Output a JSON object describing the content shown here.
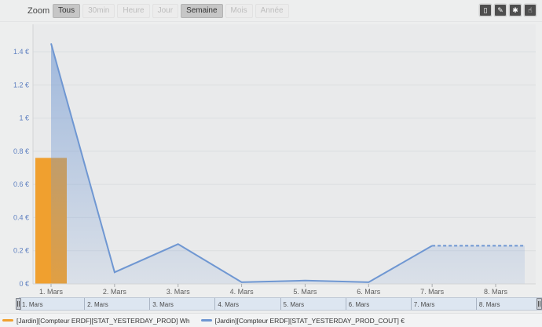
{
  "toolbar": {
    "zoom_label": "Zoom",
    "range_buttons": [
      {
        "label": "Tous",
        "state": "selected"
      },
      {
        "label": "30min",
        "state": "disabled"
      },
      {
        "label": "Heure",
        "state": "disabled"
      },
      {
        "label": "Jour",
        "state": "disabled"
      },
      {
        "label": "Semaine",
        "state": "selected"
      },
      {
        "label": "Mois",
        "state": "disabled"
      },
      {
        "label": "Année",
        "state": "disabled"
      }
    ],
    "action_buttons": [
      {
        "name": "panel-icon",
        "glyph": "▯"
      },
      {
        "name": "pencil-icon",
        "glyph": "✎"
      },
      {
        "name": "gear-icon",
        "glyph": "✱"
      },
      {
        "name": "hand-icon",
        "glyph": "☝"
      }
    ]
  },
  "chart_data": {
    "type": "mixed",
    "categories": [
      "1. Mars",
      "2. Mars",
      "3. Mars",
      "4. Mars",
      "5. Mars",
      "6. Mars",
      "7. Mars",
      "8. Mars"
    ],
    "series": [
      {
        "name": "[Jardin][Compteur ERDF][STAT_YESTERDAY_PROD] Wh",
        "type": "bar",
        "color": "#f0a02f",
        "values": [
          0.76,
          null,
          null,
          null,
          null,
          null,
          null,
          null
        ]
      },
      {
        "name": "[Jardin][Compteur ERDF][STAT_YESTERDAY_PROD_COUT] €",
        "type": "area",
        "color": "#6f97d2",
        "values": [
          1.45,
          0.07,
          0.24,
          0.01,
          0.02,
          0.01,
          0.23,
          0.23
        ],
        "dashed_from_index": 6,
        "extends_past_last_category": true
      }
    ],
    "yaxis": {
      "position": "left",
      "label_color": "#5d7fc0",
      "ylim": [
        0,
        1.57
      ],
      "ticks": [
        {
          "v": 1.4,
          "label": "1.4 €"
        },
        {
          "v": 1.2,
          "label": "1.2 €"
        },
        {
          "v": 1.0,
          "label": "1 €"
        },
        {
          "v": 0.8,
          "label": "0.8 €"
        },
        {
          "v": 0.6,
          "label": "0.6 €"
        },
        {
          "v": 0.4,
          "label": "0.4 €"
        },
        {
          "v": 0.2,
          "label": "0.2 €"
        },
        {
          "v": 0.0,
          "label": "0 €"
        }
      ],
      "grid": true
    },
    "legend_position": "bottom"
  },
  "navigator": {
    "labels": [
      "1. Mars",
      "2. Mars",
      "3. Mars",
      "4. Mars",
      "5. Mars",
      "6. Mars",
      "7. Mars",
      "8. Mars"
    ]
  },
  "legend": {
    "items": [
      {
        "label": "[Jardin][Compteur ERDF][STAT_YESTERDAY_PROD] Wh",
        "color": "#f0a02f"
      },
      {
        "label": "[Jardin][Compteur ERDF][STAT_YESTERDAY_PROD_COUT] €",
        "color": "#6f97d2"
      }
    ]
  }
}
